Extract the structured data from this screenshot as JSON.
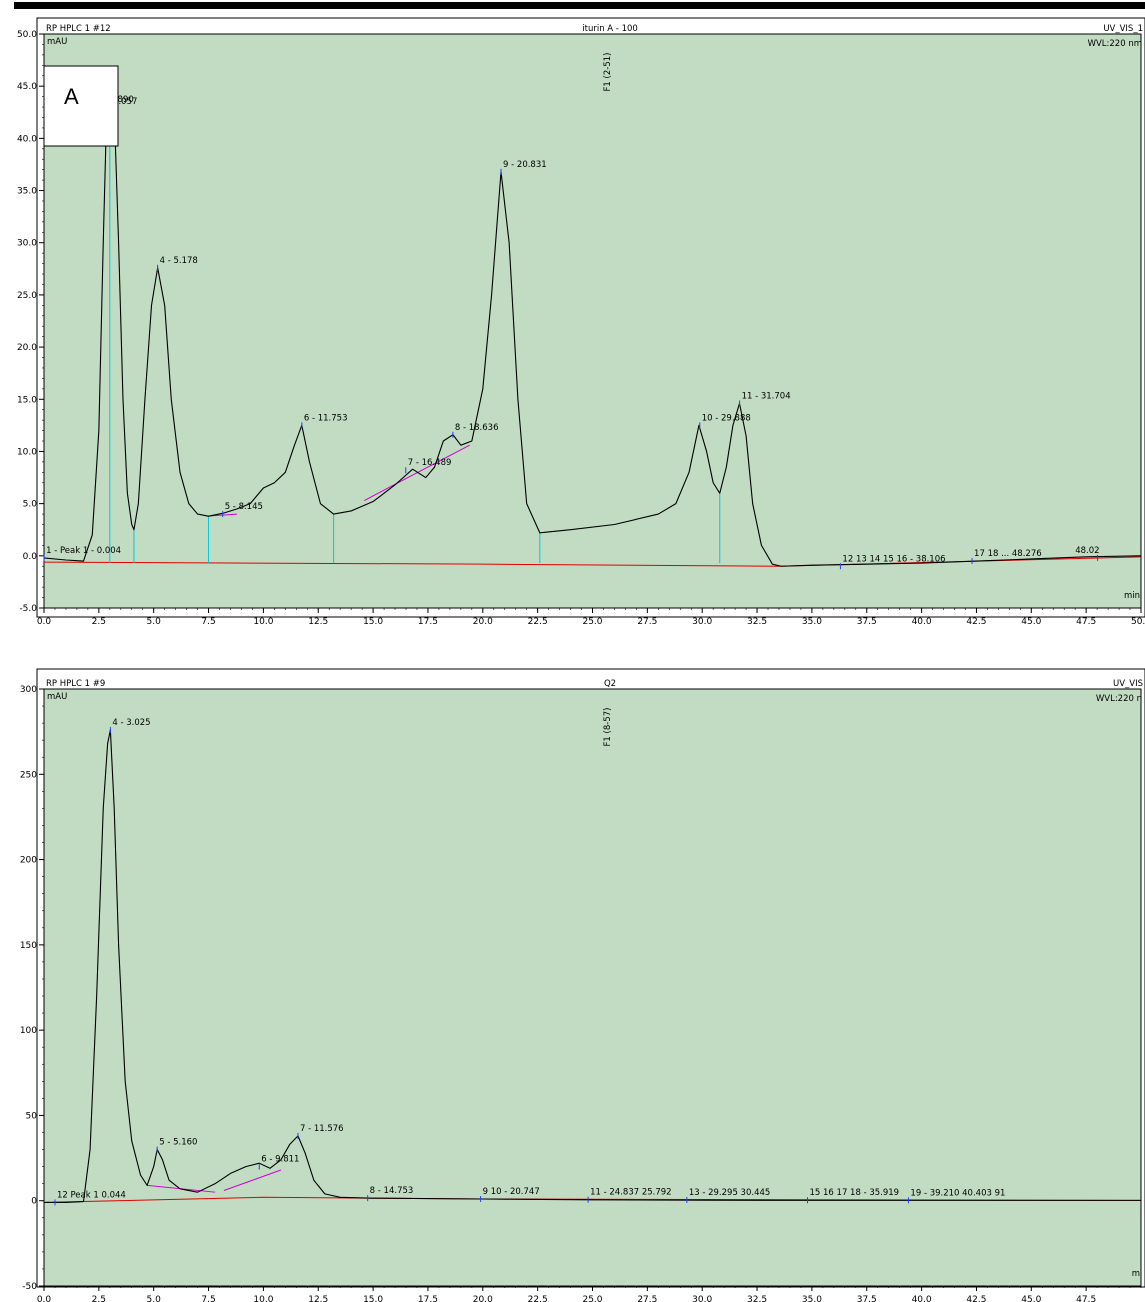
{
  "chart_data": [
    {
      "type": "line",
      "panel_label": "A",
      "header_left": "RP HPLC 1 #12",
      "header_center": "iturin A - 100",
      "header_right": "UV_VIS_1",
      "wavelength": "WVL:220 nm",
      "ylabel": "mAU",
      "xlabel": "min",
      "fraction_mark": "F1 (2-51)",
      "fraction_mark_x": 25.8,
      "xlim": [
        0,
        50
      ],
      "ylim": [
        -5,
        50
      ],
      "xticks": [
        "0.0",
        "2.5",
        "5.0",
        "7.5",
        "10.0",
        "12.5",
        "15.0",
        "17.5",
        "20.0",
        "22.5",
        "25.0",
        "27.5",
        "30.0",
        "32.5",
        "35.0",
        "37.5",
        "40.0",
        "42.5",
        "45.0",
        "47.5",
        "50.0"
      ],
      "yticks": [
        "-5.0",
        "0.0",
        "5.0",
        "10.0",
        "15.0",
        "20.0",
        "25.0",
        "30.0",
        "35.0",
        "40.0",
        "45.0",
        "50.0"
      ],
      "series": [
        {
          "color": "#000000",
          "x": [
            0,
            1,
            1.8,
            2.2,
            2.5,
            2.7,
            2.85,
            2.95,
            3.0,
            3.1,
            3.2,
            3.4,
            3.6,
            3.8,
            4.0,
            4.1,
            4.3,
            4.6,
            4.9,
            5.18,
            5.5,
            5.8,
            6.2,
            6.6,
            7.0,
            7.5,
            8.2,
            8.8,
            9.4,
            10.0,
            10.5,
            11.0,
            11.4,
            11.75,
            12.1,
            12.6,
            13.2,
            14.0,
            15.0,
            16.0,
            16.8,
            17.4,
            17.8,
            18.2,
            18.64,
            19.0,
            19.5,
            20.0,
            20.4,
            20.83,
            21.2,
            21.6,
            22.0,
            22.6,
            24.0,
            26.0,
            28.0,
            28.8,
            29.4,
            29.85,
            30.2,
            30.5,
            30.8,
            31.1,
            31.4,
            31.7,
            32.0,
            32.3,
            32.7,
            33.2,
            33.6,
            35.0,
            37.5,
            40.0,
            42.5,
            45.0,
            47.5,
            50.0
          ],
          "y": [
            -0.2,
            -0.4,
            -0.5,
            2,
            12,
            30,
            42,
            43,
            43.5,
            40,
            42.8,
            30,
            15,
            6,
            3,
            2.5,
            5,
            15,
            24,
            27.6,
            24,
            15,
            8,
            5,
            4,
            3.8,
            4.1,
            4.5,
            5,
            6.5,
            7,
            8,
            10.5,
            12.5,
            9,
            5,
            4,
            4.3,
            5.2,
            6.8,
            8.3,
            7.5,
            8.5,
            11,
            11.6,
            10.6,
            11,
            16,
            25,
            36.8,
            30,
            15,
            5,
            2.2,
            2.5,
            3,
            4,
            5,
            8,
            12.5,
            10,
            7,
            6,
            8.5,
            12.5,
            14.6,
            11.5,
            5,
            1,
            -0.8,
            -1,
            -0.9,
            -0.8,
            -0.7,
            -0.5,
            -0.3,
            -0.1,
            0
          ]
        }
      ],
      "peaks": [
        {
          "label": "1 - Peak 1 - 0.004",
          "x": 0.004,
          "y": -0.2
        },
        {
          "label": "2.890",
          "x": 2.89,
          "y": 43
        },
        {
          "label": "3.057",
          "x": 3.057,
          "y": 42.8
        },
        {
          "label": "4 - 5.178",
          "x": 5.178,
          "y": 27.6
        },
        {
          "label": "5 - 8.145",
          "x": 8.145,
          "y": 4
        },
        {
          "label": "6 - 11.753",
          "x": 11.753,
          "y": 12.5
        },
        {
          "label": "7 - 16.489",
          "x": 16.489,
          "y": 8.2
        },
        {
          "label": "8 - 18.636",
          "x": 18.636,
          "y": 11.6
        },
        {
          "label": "9 - 20.831",
          "x": 20.831,
          "y": 36.8
        },
        {
          "label": "10 - 29.888",
          "x": 29.888,
          "y": 12.5
        },
        {
          "label": "11 - 31.704",
          "x": 31.704,
          "y": 14.6
        },
        {
          "label": "12 13 14 15 16 - 38.106",
          "x": 36.3,
          "y": -1
        },
        {
          "label": "17 18 ... 48.276",
          "x": 42.3,
          "y": -0.5
        },
        {
          "label": "48.02",
          "x": 48.02,
          "y": -0.2
        }
      ]
    },
    {
      "type": "line",
      "header_left": "RP HPLC 1 #9",
      "header_center": "Q2",
      "header_right": "UV_VIS",
      "wavelength": "WVL:220 n",
      "ylabel": "mAU",
      "xlabel": "m",
      "fraction_mark": "F1 (8-57)",
      "fraction_mark_x": 25.8,
      "xlim": [
        0,
        50
      ],
      "ylim": [
        -50,
        300
      ],
      "xticks": [
        "0.0",
        "2.5",
        "5.0",
        "7.5",
        "10.0",
        "12.5",
        "15.0",
        "17.5",
        "20.0",
        "22.5",
        "25.0",
        "27.5",
        "30.0",
        "32.5",
        "35.0",
        "37.5",
        "40.0",
        "42.5",
        "45.0",
        "47.5"
      ],
      "yticks": [
        "-50",
        "0",
        "50",
        "100",
        "150",
        "200",
        "250",
        "300"
      ],
      "series": [
        {
          "color": "#000000",
          "x": [
            0,
            1,
            1.8,
            2.1,
            2.4,
            2.7,
            2.9,
            3.025,
            3.2,
            3.4,
            3.7,
            4.0,
            4.4,
            4.7,
            5.0,
            5.16,
            5.4,
            5.7,
            6.2,
            7.0,
            7.8,
            8.5,
            9.2,
            9.81,
            10.3,
            10.8,
            11.2,
            11.576,
            11.9,
            12.3,
            12.8,
            13.5,
            15.0,
            20.0,
            25.0,
            30.0,
            35.0,
            40.0,
            45.0,
            50.0
          ],
          "y": [
            -1,
            -1,
            -0.5,
            30,
            120,
            230,
            268,
            276,
            230,
            150,
            70,
            35,
            15,
            9,
            20,
            30,
            24,
            12,
            7,
            5,
            10,
            16,
            20,
            22,
            19,
            24,
            33,
            38,
            28,
            12,
            4,
            2,
            1.5,
            1,
            0.5,
            0.3,
            0.2,
            0.2,
            0.2,
            0.2
          ]
        }
      ],
      "peaks": [
        {
          "label": "12 Peak 1 0.044",
          "x": 0.5,
          "y": -1
        },
        {
          "label": "4 - 3.025",
          "x": 3.025,
          "y": 276
        },
        {
          "label": "5 - 5.160",
          "x": 5.16,
          "y": 30
        },
        {
          "label": "6 - 9.811",
          "x": 9.81,
          "y": 20
        },
        {
          "label": "7 - 11.576",
          "x": 11.576,
          "y": 38
        },
        {
          "label": "8 - 14.753",
          "x": 14.753,
          "y": 1.5
        },
        {
          "label": "9 10 - 20.747",
          "x": 19.9,
          "y": 1
        },
        {
          "label": "11 - 24.837 25.792",
          "x": 24.8,
          "y": 0.6
        },
        {
          "label": "13 - 29.295 30.445",
          "x": 29.3,
          "y": 0.4
        },
        {
          "label": "15 16 17 18 - 35.919",
          "x": 34.8,
          "y": 0.3
        },
        {
          "label": "19 - 39.210 40.403 91",
          "x": 39.4,
          "y": 0.2
        }
      ]
    }
  ]
}
